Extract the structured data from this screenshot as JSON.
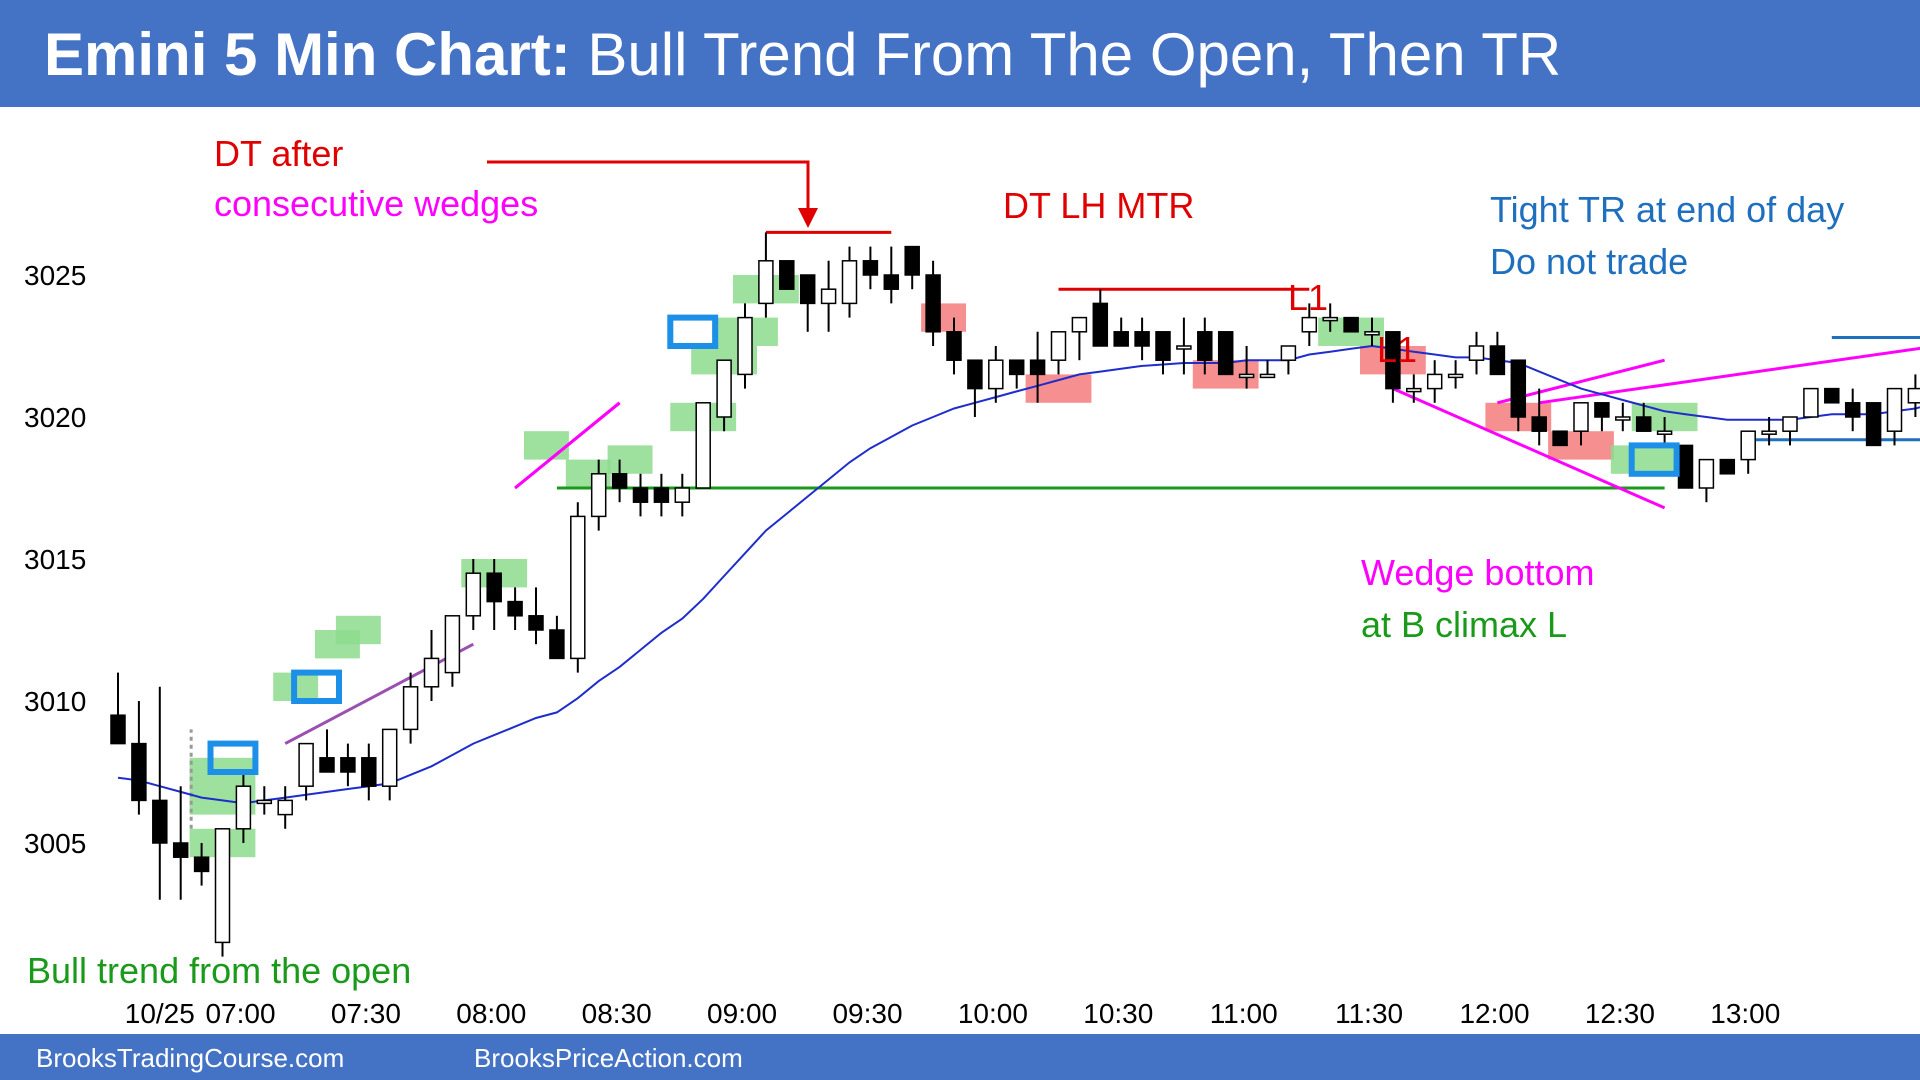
{
  "header": {
    "title_bold": "Emini 5 Min Chart:",
    "title_rest": " Bull Trend From The Open, Then TR"
  },
  "footer": {
    "left": "BrooksTradingCourse.com",
    "right": "BrooksPriceAction.com"
  },
  "colors": {
    "banner": "#4472c4",
    "ema": "#1f2dcc",
    "bull_highlight": "#8ddb8d",
    "bear_highlight": "#f47c7c",
    "signal_box": "#1c8fe8",
    "magenta": "#ff00ff",
    "red": "#e00000",
    "green": "#1a9a1a",
    "blue": "#1f6fbf"
  },
  "chart_data": {
    "type": "candlestick",
    "title": "Emini 5 Min Chart: Bull Trend From The Open, Then TR",
    "x_tick_labels": [
      "10/25",
      "07:00",
      "07:30",
      "08:00",
      "08:30",
      "09:00",
      "09:30",
      "10:00",
      "10:30",
      "11:00",
      "11:30",
      "12:00",
      "12:30",
      "13:00"
    ],
    "y_tick_labels": [
      "3005",
      "3010",
      "3015",
      "3020",
      "3025"
    ],
    "ylim": [
      3001.5,
      3028
    ],
    "grid": false,
    "bars": [
      [
        3009.5,
        3011,
        3008.5,
        3008.5
      ],
      [
        3008.5,
        3010,
        3006,
        3006.5
      ],
      [
        3006.5,
        3010.5,
        3003,
        3005
      ],
      [
        3005,
        3007,
        3003,
        3004.5
      ],
      [
        3004.5,
        3005,
        3003.5,
        3004
      ],
      [
        3001.5,
        3005.5,
        3001,
        3005.5
      ],
      [
        3005.5,
        3007.5,
        3005,
        3007
      ],
      [
        3006.5,
        3007,
        3006,
        3006.5
      ],
      [
        3006,
        3007,
        3005.5,
        3006.5
      ],
      [
        3007,
        3008.5,
        3006.5,
        3008.5
      ],
      [
        3008,
        3009,
        3007.5,
        3007.5
      ],
      [
        3008,
        3008.5,
        3007,
        3007.5
      ],
      [
        3008,
        3008.5,
        3006.5,
        3007
      ],
      [
        3007,
        3009,
        3006.5,
        3009
      ],
      [
        3009,
        3011,
        3008.5,
        3010.5
      ],
      [
        3010.5,
        3012.5,
        3010,
        3011.5
      ],
      [
        3011,
        3013,
        3010.5,
        3013
      ],
      [
        3013,
        3015,
        3012.5,
        3014.5
      ],
      [
        3014.5,
        3015,
        3012.5,
        3013.5
      ],
      [
        3013.5,
        3014,
        3012.5,
        3013
      ],
      [
        3013,
        3014,
        3012,
        3012.5
      ],
      [
        3012.5,
        3013,
        3011.5,
        3011.5
      ],
      [
        3011.5,
        3017,
        3011,
        3016.5
      ],
      [
        3016.5,
        3018.5,
        3016,
        3018
      ],
      [
        3018,
        3018.5,
        3017,
        3017.5
      ],
      [
        3017.5,
        3018,
        3016.5,
        3017
      ],
      [
        3017.5,
        3018,
        3016.5,
        3017
      ],
      [
        3017,
        3018,
        3016.5,
        3017.5
      ],
      [
        3017.5,
        3020.5,
        3017.5,
        3020.5
      ],
      [
        3020,
        3022,
        3019.5,
        3022
      ],
      [
        3021.5,
        3024,
        3021,
        3023.5
      ],
      [
        3024,
        3026.5,
        3023.5,
        3025.5
      ],
      [
        3025.5,
        3025.5,
        3024.5,
        3024.5
      ],
      [
        3025,
        3025,
        3023,
        3024
      ],
      [
        3024,
        3025.5,
        3023,
        3024.5
      ],
      [
        3024,
        3026,
        3023.5,
        3025.5
      ],
      [
        3025.5,
        3026,
        3024.5,
        3025
      ],
      [
        3025,
        3026,
        3024,
        3024.5
      ],
      [
        3026,
        3026,
        3024.5,
        3025
      ],
      [
        3025,
        3025.5,
        3022.5,
        3023
      ],
      [
        3023,
        3023.5,
        3021.5,
        3022
      ],
      [
        3022,
        3022,
        3020,
        3021
      ],
      [
        3021,
        3022.5,
        3020.5,
        3022
      ],
      [
        3022,
        3022,
        3021,
        3021.5
      ],
      [
        3022,
        3023,
        3020.5,
        3021.5
      ],
      [
        3022,
        3023,
        3021.5,
        3023
      ],
      [
        3023,
        3023.5,
        3022,
        3023.5
      ],
      [
        3024,
        3024.5,
        3022.5,
        3022.5
      ],
      [
        3023,
        3023.5,
        3022.5,
        3022.5
      ],
      [
        3023,
        3023.5,
        3022,
        3022.5
      ],
      [
        3023,
        3023,
        3021.5,
        3022
      ],
      [
        3022.5,
        3023.5,
        3021.5,
        3022.5
      ],
      [
        3023,
        3023.5,
        3021.5,
        3022
      ],
      [
        3023,
        3023,
        3021.5,
        3021.5
      ],
      [
        3021.5,
        3022.5,
        3021,
        3021.5
      ],
      [
        3021.5,
        3022,
        3021.5,
        3021.5
      ],
      [
        3022,
        3022.5,
        3021.5,
        3022.5
      ],
      [
        3023,
        3024,
        3022.5,
        3023.5
      ],
      [
        3023.5,
        3024,
        3023,
        3023.5
      ],
      [
        3023.5,
        3023.5,
        3023,
        3023
      ],
      [
        3023,
        3023.5,
        3022.5,
        3023
      ],
      [
        3023,
        3023,
        3020.5,
        3021
      ],
      [
        3021,
        3021.5,
        3020.5,
        3021
      ],
      [
        3021,
        3022,
        3020.5,
        3021.5
      ],
      [
        3021.5,
        3022,
        3021,
        3021.5
      ],
      [
        3022,
        3023,
        3021.5,
        3022.5
      ],
      [
        3022.5,
        3023,
        3021.5,
        3021.5
      ],
      [
        3022,
        3022,
        3019.5,
        3020
      ],
      [
        3020,
        3021,
        3019,
        3019.5
      ],
      [
        3019.5,
        3019.5,
        3019,
        3019
      ],
      [
        3019.5,
        3020.5,
        3019,
        3020.5
      ],
      [
        3020.5,
        3020.5,
        3019.5,
        3020
      ],
      [
        3020,
        3020.5,
        3019.5,
        3020
      ],
      [
        3020,
        3020.5,
        3019.5,
        3019.5
      ],
      [
        3019.5,
        3020,
        3019,
        3019.5
      ],
      [
        3019,
        3019,
        3017.5,
        3017.5
      ],
      [
        3017.5,
        3018.5,
        3017,
        3018.5
      ],
      [
        3018.5,
        3018.5,
        3018,
        3018
      ],
      [
        3018.5,
        3019.5,
        3018,
        3019.5
      ],
      [
        3019.5,
        3020,
        3019,
        3019.5
      ],
      [
        3019.5,
        3020,
        3019,
        3020
      ],
      [
        3020,
        3021,
        3020,
        3021
      ],
      [
        3021,
        3021,
        3020.5,
        3020.5
      ],
      [
        3020.5,
        3021,
        3019.5,
        3020
      ],
      [
        3020.5,
        3020.5,
        3019,
        3019
      ],
      [
        3019.5,
        3021,
        3019,
        3021
      ],
      [
        3020.5,
        3021.5,
        3020,
        3021
      ],
      [
        3021,
        3022,
        3020.5,
        3022
      ],
      [
        3021.5,
        3022.5,
        3021,
        3021.5
      ],
      [
        3021,
        3022.5,
        3021,
        3022.5
      ],
      [
        3022.5,
        3022.5,
        3021.5,
        3022
      ],
      [
        3022,
        3022.5,
        3021.5,
        3022
      ],
      [
        3021.5,
        3021.5,
        3020.5,
        3021
      ],
      [
        3021,
        3021,
        3020,
        3020
      ],
      [
        3020,
        3020.5,
        3019,
        3020
      ],
      [
        3020.5,
        3021,
        3020,
        3020.5
      ],
      [
        3020.5,
        3021,
        3019.5,
        3019.5
      ],
      [
        3019.5,
        3019.5,
        3019,
        3019.5
      ],
      [
        3019,
        3020,
        3018.5,
        3020
      ]
    ],
    "ema_20": [
      3007.3,
      3007.2,
      3007,
      3006.8,
      3006.6,
      3006.5,
      3006.4,
      3006.5,
      3006.6,
      3006.7,
      3006.8,
      3006.9,
      3007,
      3007.1,
      3007.4,
      3007.7,
      3008.1,
      3008.5,
      3008.8,
      3009.1,
      3009.4,
      3009.6,
      3010.1,
      3010.7,
      3011.2,
      3011.8,
      3012.4,
      3012.9,
      3013.6,
      3014.4,
      3015.2,
      3016,
      3016.6,
      3017.2,
      3017.8,
      3018.4,
      3018.9,
      3019.3,
      3019.7,
      3020,
      3020.3,
      3020.5,
      3020.7,
      3020.9,
      3021.1,
      3021.3,
      3021.5,
      3021.6,
      3021.7,
      3021.8,
      3021.85,
      3021.9,
      3021.9,
      3021.9,
      3022,
      3022,
      3022,
      3022.2,
      3022.3,
      3022.4,
      3022.5,
      3022.4,
      3022.3,
      3022.2,
      3022.1,
      3022.1,
      3022,
      3021.9,
      3021.6,
      3021.3,
      3021,
      3020.8,
      3020.6,
      3020.4,
      3020.2,
      3020.1,
      3020,
      3019.9,
      3019.9,
      3019.9,
      3019.9,
      3020,
      3020.1,
      3020.1,
      3020.1,
      3020.2,
      3020.3,
      3020.5,
      3020.6,
      3020.7,
      3020.8,
      3020.9,
      3020.9,
      3020.9,
      3020.8,
      3020.8,
      3020.7,
      3020.6,
      3020.5
    ]
  },
  "annotations": {
    "dt_after": "DT after",
    "consecutive_wedges": "consecutive wedges",
    "dt_lh_mtr": "DT LH MTR",
    "tight_tr": "Tight TR at end of day",
    "do_not_trade": "Do not trade",
    "l1_first": "L1",
    "l1_second": "L1",
    "wedge_bottom": "Wedge bottom",
    "at_b_climax": "at B climax L",
    "bull_trend": "Bull trend from the open"
  }
}
